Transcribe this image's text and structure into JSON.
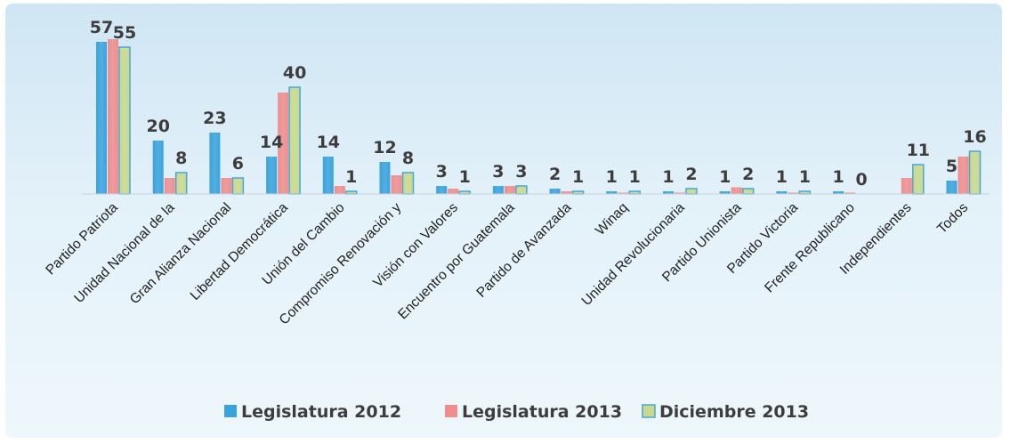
{
  "chart_data": {
    "type": "bar",
    "categories": [
      "Partido Patriota",
      "Unidad Nacional de la",
      "Gran Alianza Nacional",
      "Libertad Democrática",
      "Unión del Cambio",
      "Compromiso Renovación y",
      "Visión con Valores",
      "Encuentro por Guatemala",
      "Partido de Avanzada",
      "Winaq",
      "Unidad Revolucionaria",
      "Partido Unionista",
      "Partido Victoria",
      "Frente Republicano",
      "Independientes",
      "Todos"
    ],
    "series": [
      {
        "name": "Legislatura 2012",
        "color": "#3aa3dc",
        "values": [
          57,
          20,
          23,
          14,
          14,
          12,
          3,
          3,
          2,
          1,
          1,
          1,
          1,
          1,
          0,
          5
        ]
      },
      {
        "name": "Legislatura 2013",
        "color": "#ef8e8e",
        "values": [
          58,
          6,
          6,
          38,
          3,
          7,
          2,
          3,
          1,
          0.5,
          0.5,
          2.5,
          0.5,
          0.5,
          6,
          14
        ]
      },
      {
        "name": "Diciembre 2013",
        "color": "#c9d98c",
        "values": [
          55,
          8,
          6,
          40,
          1,
          8,
          1,
          3,
          1,
          1,
          2,
          2,
          1,
          0,
          11,
          16
        ]
      }
    ],
    "data_labels": [
      [
        "57",
        "",
        "55"
      ],
      [
        "20",
        "",
        "8"
      ],
      [
        "23",
        "",
        "6"
      ],
      [
        "14",
        "",
        "40"
      ],
      [
        "14",
        "",
        "1"
      ],
      [
        "12",
        "",
        "8"
      ],
      [
        "3",
        "",
        "1"
      ],
      [
        "3",
        "",
        "3"
      ],
      [
        "2",
        "",
        "1"
      ],
      [
        "1",
        "",
        "1"
      ],
      [
        "1",
        "",
        "2"
      ],
      [
        "1",
        "",
        "2"
      ],
      [
        "1",
        "",
        "1"
      ],
      [
        "1",
        "",
        "0"
      ],
      [
        "",
        "",
        "11"
      ],
      [
        "5",
        "",
        "16"
      ]
    ],
    "ylim": [
      0,
      60
    ],
    "grid": false,
    "legend_position": "bottom"
  }
}
